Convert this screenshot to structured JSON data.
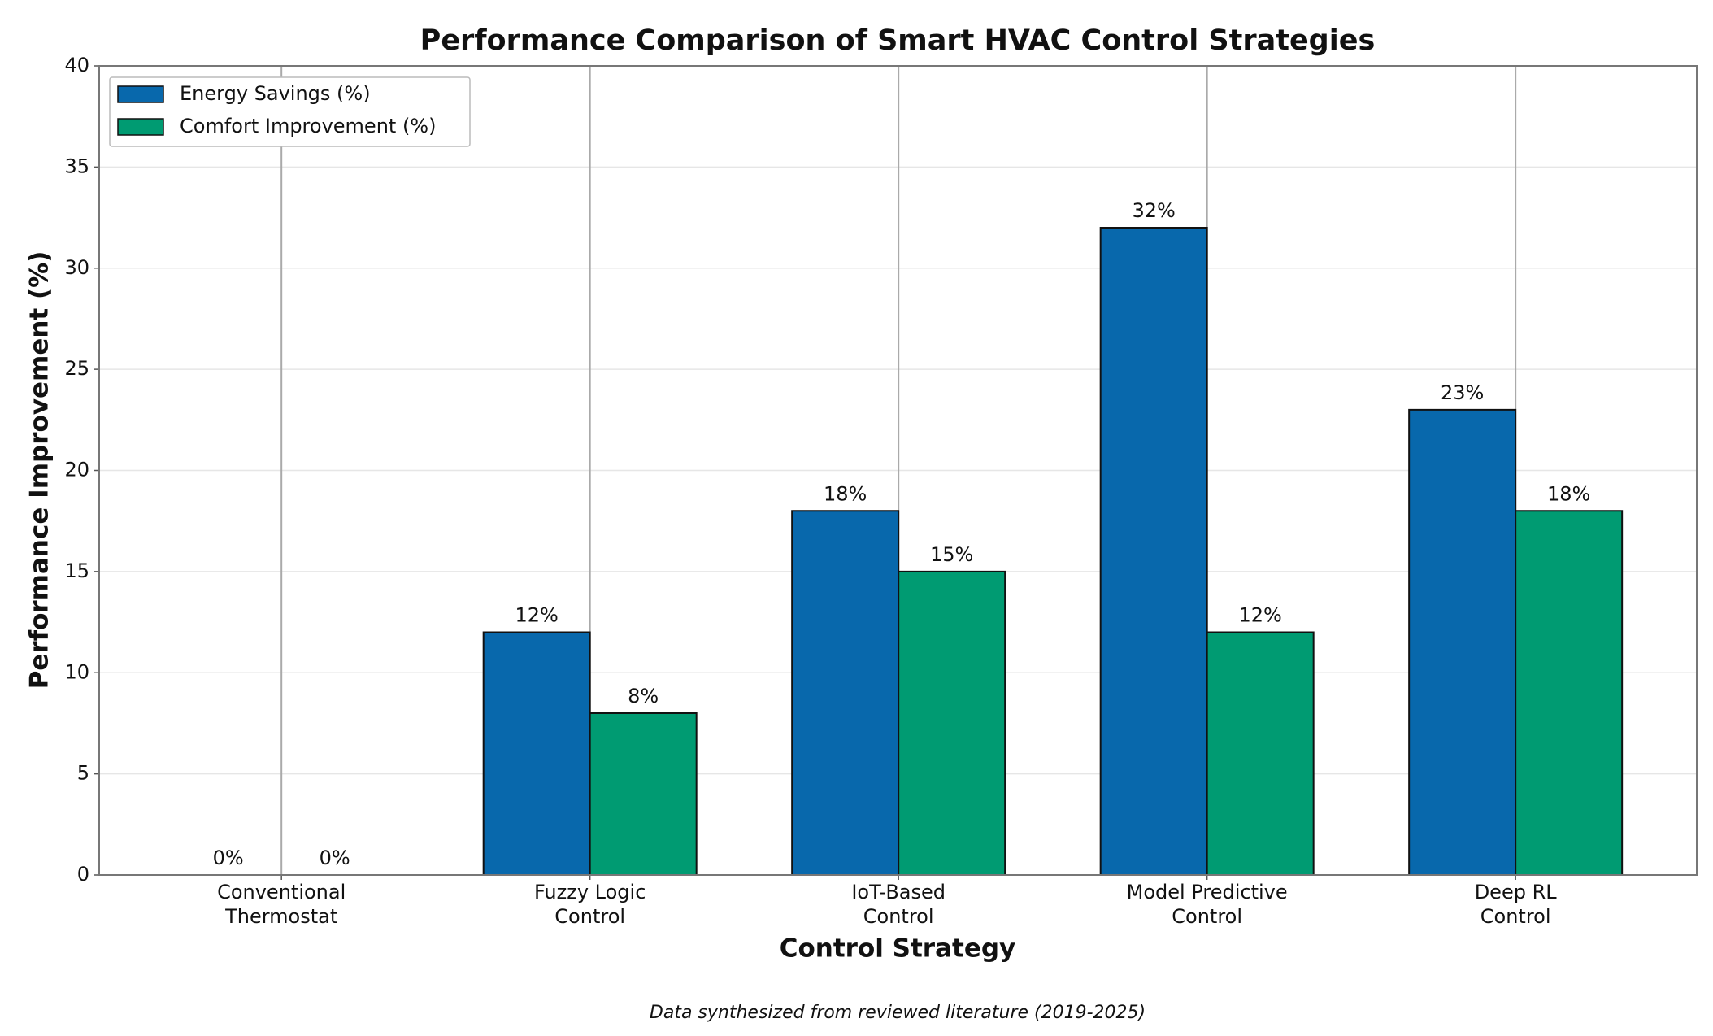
{
  "chart_data": {
    "type": "bar",
    "title": "Performance Comparison of Smart HVAC Control Strategies",
    "x_label": "Control Strategy",
    "y_label": "Performance Improvement (%)",
    "footnote": "Data synthesized from reviewed literature (2019-2025)",
    "categories": [
      "Conventional\nThermostat",
      "Fuzzy Logic\nControl",
      "IoT-Based\nControl",
      "Model Predictive\nControl",
      "Deep RL\nControl"
    ],
    "series": [
      {
        "name": "Energy Savings (%)",
        "color": "#0868ac",
        "values": [
          0,
          12,
          18,
          32,
          23
        ],
        "value_labels": [
          "0%",
          "12%",
          "18%",
          "32%",
          "23%"
        ]
      },
      {
        "name": "Comfort Improvement (%)",
        "color": "#009b72",
        "values": [
          0,
          8,
          15,
          12,
          18
        ],
        "value_labels": [
          "0%",
          "8%",
          "15%",
          "12%",
          "18%"
        ]
      }
    ],
    "ylim": [
      0,
      40
    ],
    "yticks": [
      0,
      5,
      10,
      15,
      20,
      25,
      30,
      35,
      40
    ],
    "grid": true,
    "legend": "upper left"
  }
}
